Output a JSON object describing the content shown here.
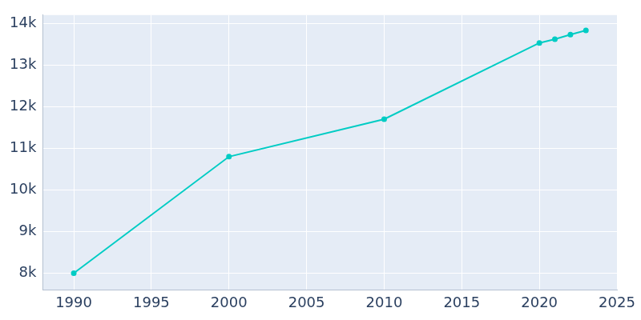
{
  "chart_data": {
    "type": "line",
    "x": [
      1990,
      2000,
      2010,
      2020,
      2021,
      2022,
      2023
    ],
    "values": [
      8000,
      10800,
      11700,
      13530,
      13620,
      13730,
      13830
    ],
    "color": "#00ccc4",
    "marker": "circle",
    "xlim": [
      1988,
      2025
    ],
    "xticks": [
      1990,
      1995,
      2000,
      2005,
      2010,
      2015,
      2020,
      2025
    ],
    "ylim": [
      7600,
      14200
    ],
    "yticks": [
      {
        "value": 8000,
        "label": "8k"
      },
      {
        "value": 9000,
        "label": "9k"
      },
      {
        "value": 10000,
        "label": "10k"
      },
      {
        "value": 11000,
        "label": "11k"
      },
      {
        "value": 12000,
        "label": "12k"
      },
      {
        "value": 13000,
        "label": "13k"
      },
      {
        "value": 14000,
        "label": "14k"
      }
    ],
    "grid": true
  }
}
